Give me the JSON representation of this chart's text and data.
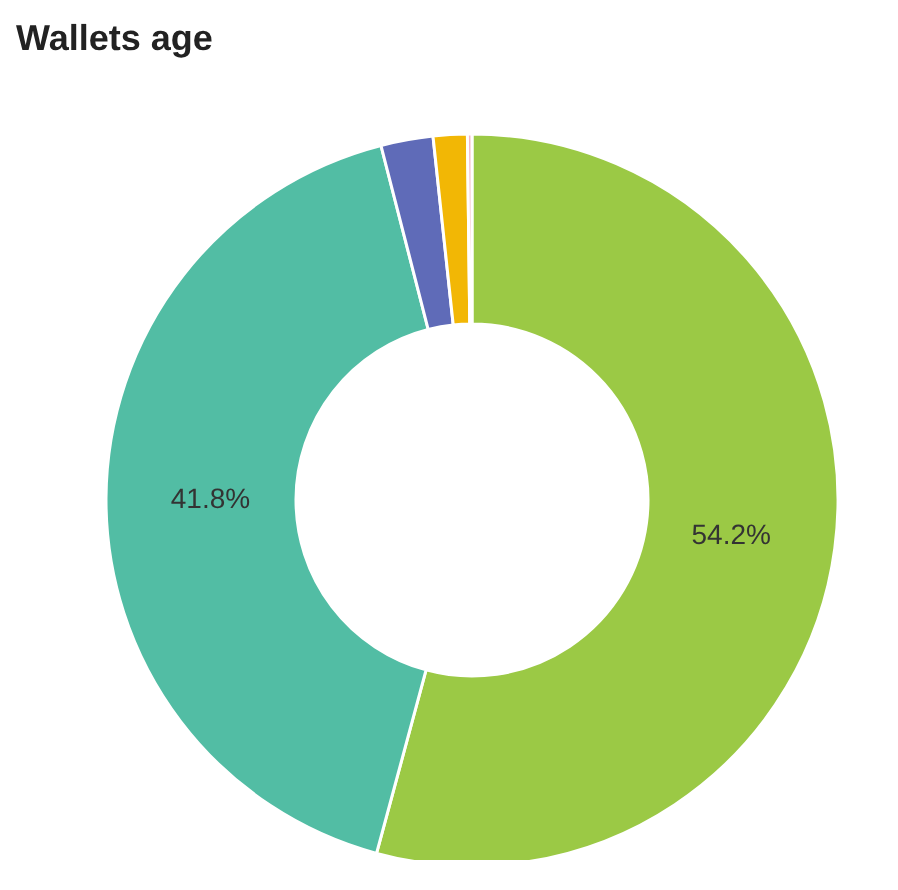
{
  "chart_data": {
    "type": "donut",
    "title": "Wallets age",
    "categories": [
      null,
      null,
      null,
      null,
      null
    ],
    "values": [
      54.2,
      41.8,
      2.3,
      1.5,
      0.2
    ],
    "colors": [
      "#9bc945",
      "#52bda4",
      "#5f6bb8",
      "#f2b705",
      "#f3b8c4"
    ],
    "value_labels": [
      "54.2%",
      "41.8%",
      null,
      null,
      null
    ],
    "legend": false
  }
}
